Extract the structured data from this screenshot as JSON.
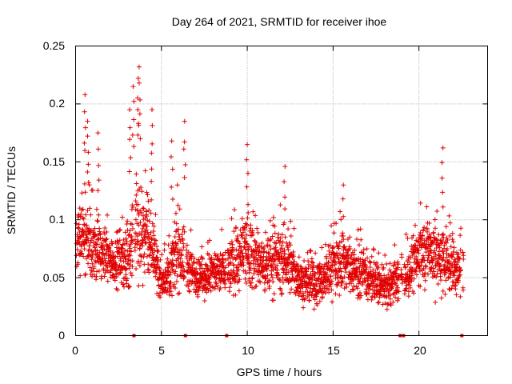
{
  "chart_data": {
    "type": "scatter",
    "title": "Day 264 of 2021, SRMTID for receiver ihoe",
    "xlabel": "GPS time / hours",
    "ylabel": "SRMTID / TECUs",
    "xlim": [
      0,
      24
    ],
    "ylim": [
      0,
      0.25
    ],
    "x_ticks": [
      0,
      5,
      10,
      15,
      20
    ],
    "y_ticks": [
      0,
      0.05,
      0.1,
      0.15,
      0.2,
      0.25
    ],
    "x_tick_labels": [
      "0",
      "5",
      "10",
      "15",
      "20"
    ],
    "y_tick_labels": [
      "0",
      "0.05",
      "0.1",
      "0.15",
      "0.2",
      "0.25"
    ],
    "grid": true,
    "marker": "+",
    "color": "#e00000",
    "data_gap_markers_hours": [
      3.4,
      6.4,
      8.8,
      18.9,
      19.1,
      22.5
    ],
    "envelope": {
      "hours": [
        0,
        0.5,
        1,
        1.5,
        2,
        2.5,
        3,
        3.5,
        4,
        4.5,
        5,
        5.5,
        6,
        6.5,
        7,
        7.5,
        8,
        8.5,
        9,
        9.5,
        10,
        10.5,
        11,
        11.5,
        12,
        12.5,
        13,
        13.5,
        14,
        14.5,
        15,
        15.5,
        16,
        16.5,
        17,
        17.5,
        18,
        18.5,
        19,
        19.5,
        20,
        20.5,
        21,
        21.5,
        22,
        22.5
      ],
      "typical": [
        0.08,
        0.085,
        0.075,
        0.07,
        0.065,
        0.065,
        0.065,
        0.09,
        0.09,
        0.075,
        0.045,
        0.055,
        0.075,
        0.06,
        0.05,
        0.05,
        0.055,
        0.055,
        0.06,
        0.065,
        0.07,
        0.065,
        0.06,
        0.065,
        0.065,
        0.06,
        0.05,
        0.045,
        0.045,
        0.05,
        0.06,
        0.065,
        0.06,
        0.055,
        0.05,
        0.045,
        0.04,
        0.045,
        0.05,
        0.055,
        0.07,
        0.075,
        0.07,
        0.065,
        0.06,
        0.055
      ],
      "spread": [
        0.025,
        0.05,
        0.045,
        0.035,
        0.03,
        0.03,
        0.035,
        0.07,
        0.06,
        0.04,
        0.02,
        0.03,
        0.05,
        0.035,
        0.025,
        0.025,
        0.03,
        0.03,
        0.035,
        0.04,
        0.05,
        0.04,
        0.035,
        0.04,
        0.04,
        0.035,
        0.025,
        0.025,
        0.03,
        0.03,
        0.035,
        0.04,
        0.035,
        0.03,
        0.03,
        0.025,
        0.025,
        0.025,
        0.025,
        0.03,
        0.04,
        0.04,
        0.05,
        0.04,
        0.035,
        0.03
      ]
    },
    "peaks": [
      {
        "x": 0.55,
        "y": 0.208
      },
      {
        "x": 0.7,
        "y": 0.185
      },
      {
        "x": 3.15,
        "y": 0.195
      },
      {
        "x": 3.35,
        "y": 0.215
      },
      {
        "x": 3.7,
        "y": 0.232
      },
      {
        "x": 3.65,
        "y": 0.222
      },
      {
        "x": 4.45,
        "y": 0.195
      },
      {
        "x": 6.35,
        "y": 0.185
      },
      {
        "x": 5.6,
        "y": 0.168
      },
      {
        "x": 10.0,
        "y": 0.165
      },
      {
        "x": 12.2,
        "y": 0.146
      },
      {
        "x": 15.6,
        "y": 0.13
      },
      {
        "x": 21.4,
        "y": 0.162
      },
      {
        "x": 1.3,
        "y": 0.175
      }
    ]
  }
}
